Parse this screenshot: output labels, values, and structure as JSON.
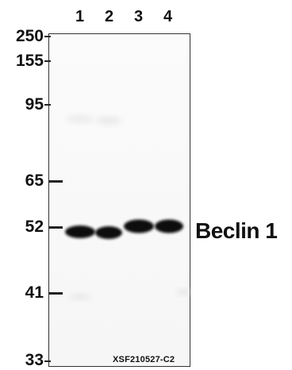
{
  "lanes": [
    "1",
    "2",
    "3",
    "4"
  ],
  "mw_markers": [
    "250",
    "155",
    "95",
    "65",
    "52",
    "41",
    "33"
  ],
  "target": "Beclin 1",
  "catalog_id": "XSF210527-C2"
}
